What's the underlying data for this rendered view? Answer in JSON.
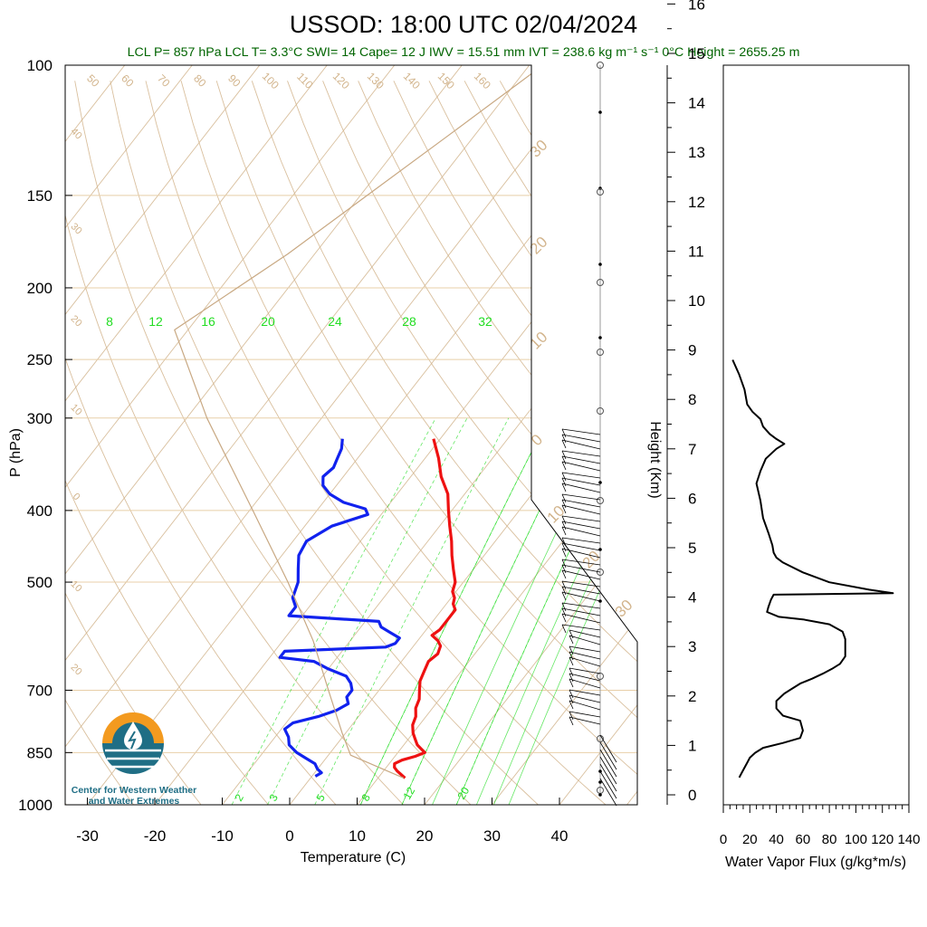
{
  "title": "USSOD: 18:00 UTC 02/04/2024",
  "stats_line": "LCL P= 857 hPa  LCL T= 3.3°C  SWI= 14  Cape= 12 J  IWV = 15.51 mm  IVT = 238.6 kg m⁻¹ s⁻¹  0°C Height = 2655.25 m",
  "logo": {
    "line1": "Center for Western Weather",
    "line2": "and Water Extremes"
  },
  "colors": {
    "temperature": "#ee1111",
    "dewpoint": "#1122ee",
    "mixing_ratio": "#22dd22",
    "adiabat": "#d2b48c",
    "isobar_grid": "#e8cfa8",
    "stats": "#006400",
    "logo_orange": "#f39a1f",
    "logo_teal": "#1f6e85"
  },
  "chart_data": [
    {
      "type": "line",
      "subtype": "skew-T log-P diagram",
      "xlabel": "Temperature (C)",
      "ylabel": "P (hPa)",
      "y_scale": "log",
      "y_reversed": true,
      "xlim": [
        -34,
        50
      ],
      "ylim": [
        1000,
        100
      ],
      "x_ticks": [
        "-30",
        "-20",
        "-10",
        "0",
        "10",
        "20",
        "30",
        "40"
      ],
      "y_ticks": [
        "100",
        "150",
        "200",
        "250",
        "300",
        "400",
        "500",
        "700",
        "850",
        "1000"
      ],
      "series": [
        {
          "role": "temperature",
          "color": "#ee1111",
          "points": [
            [
              920,
              14.0
            ],
            [
              910,
              13.0
            ],
            [
              900,
              12.0
            ],
            [
              890,
              11.2
            ],
            [
              880,
              10.8
            ],
            [
              870,
              11.5
            ],
            [
              860,
              13.0
            ],
            [
              850,
              14.0
            ],
            [
              840,
              13.0
            ],
            [
              830,
              12.0
            ],
            [
              815,
              11.0
            ],
            [
              800,
              10.0
            ],
            [
              780,
              9.0
            ],
            [
              760,
              8.5
            ],
            [
              740,
              7.5
            ],
            [
              720,
              7.0
            ],
            [
              700,
              6.0
            ],
            [
              680,
              5.0
            ],
            [
              660,
              4.5
            ],
            [
              640,
              4.0
            ],
            [
              625,
              4.5
            ],
            [
              610,
              4.0
            ],
            [
              600,
              3.0
            ],
            [
              590,
              1.5
            ],
            [
              580,
              2.0
            ],
            [
              560,
              2.0
            ],
            [
              545,
              2.0
            ],
            [
              535,
              1.0
            ],
            [
              525,
              0.5
            ],
            [
              515,
              -0.5
            ],
            [
              500,
              -1.2
            ],
            [
              480,
              -3.0
            ],
            [
              460,
              -4.8
            ],
            [
              440,
              -6.5
            ],
            [
              420,
              -8.5
            ],
            [
              400,
              -10.5
            ],
            [
              380,
              -12.5
            ],
            [
              360,
              -15.5
            ],
            [
              340,
              -18.0
            ],
            [
              320,
              -21.0
            ]
          ]
        },
        {
          "role": "dewpoint",
          "color": "#1122ee",
          "points": [
            [
              915,
              0.5
            ],
            [
              905,
              1.0
            ],
            [
              895,
              0.0
            ],
            [
              880,
              -1.0
            ],
            [
              865,
              -3.0
            ],
            [
              850,
              -5.0
            ],
            [
              830,
              -7.0
            ],
            [
              810,
              -8.0
            ],
            [
              790,
              -9.5
            ],
            [
              775,
              -9.0
            ],
            [
              760,
              -6.0
            ],
            [
              745,
              -4.0
            ],
            [
              730,
              -3.0
            ],
            [
              715,
              -4.0
            ],
            [
              700,
              -4.0
            ],
            [
              685,
              -5.0
            ],
            [
              670,
              -6.5
            ],
            [
              655,
              -10.0
            ],
            [
              640,
              -13.0
            ],
            [
              632,
              -18.5
            ],
            [
              620,
              -18.5
            ],
            [
              612,
              -4.0
            ],
            [
              605,
              -3.0
            ],
            [
              595,
              -3.0
            ],
            [
              585,
              -5.0
            ],
            [
              575,
              -7.0
            ],
            [
              565,
              -8.0
            ],
            [
              555,
              -22.0
            ],
            [
              540,
              -22.0
            ],
            [
              525,
              -23.5
            ],
            [
              500,
              -24.5
            ],
            [
              480,
              -26.0
            ],
            [
              460,
              -27.5
            ],
            [
              440,
              -28.0
            ],
            [
              420,
              -26.0
            ],
            [
              405,
              -22.0
            ],
            [
              398,
              -23.0
            ],
            [
              390,
              -27.0
            ],
            [
              380,
              -30.0
            ],
            [
              370,
              -32.0
            ],
            [
              365,
              -32.5
            ],
            [
              360,
              -33.0
            ],
            [
              350,
              -32.5
            ],
            [
              340,
              -33.0
            ],
            [
              330,
              -33.5
            ],
            [
              320,
              -34.5
            ]
          ]
        },
        {
          "role": "parcel",
          "color": "#c8a882",
          "points": [
            [
              920,
              13.8
            ],
            [
              857,
              3.3
            ],
            [
              800,
              -0.5
            ],
            [
              700,
              -7.5
            ],
            [
              600,
              -15.5
            ],
            [
              500,
              -26.0
            ],
            [
              400,
              -39.5
            ],
            [
              300,
              -57.0
            ],
            [
              228,
              -72.0
            ],
            [
              180,
              -64.0
            ],
            [
              150,
              -59.0
            ],
            [
              125,
              -54.0
            ],
            [
              100,
              -48.0
            ]
          ]
        }
      ],
      "mixing_ratio_labels_top": [
        "8",
        "12",
        "16",
        "20",
        "24",
        "28",
        "32"
      ],
      "mixing_ratio_labels_bottom": [
        "2",
        "3",
        "5",
        "8",
        "12",
        "20"
      ],
      "dry_adiabat_labels": [
        "50",
        "60",
        "70",
        "80",
        "90",
        "100",
        "110",
        "120",
        "130",
        "140",
        "150",
        "160"
      ],
      "adiabat_labels_left": [
        "40",
        "30",
        "20",
        "10",
        "0",
        "10",
        "20"
      ],
      "temperature_labels_right": [
        "30",
        "20",
        "10",
        "0",
        "10",
        "20",
        "30"
      ]
    },
    {
      "type": "line",
      "subtype": "wind barbs vs height",
      "ylabel": "Height (Km)",
      "ylim": [
        0,
        16.3
      ],
      "y_ticks": [
        "0",
        "1",
        "2",
        "3",
        "4",
        "5",
        "6",
        "7",
        "8",
        "9",
        "10",
        "11",
        "12",
        "13",
        "14",
        "15",
        "16"
      ]
    },
    {
      "type": "line",
      "xlabel": "Water Vapor Flux (g/kg*m/s)",
      "xlim": [
        0,
        140
      ],
      "x_ticks": [
        "0",
        "20",
        "40",
        "60",
        "80",
        "100",
        "120",
        "140"
      ],
      "series": [
        {
          "role": "water-vapor-flux",
          "color": "#000000",
          "points": [
            [
              0.35,
              12
            ],
            [
              0.45,
              14
            ],
            [
              0.55,
              16
            ],
            [
              0.65,
              18
            ],
            [
              0.75,
              20
            ],
            [
              0.85,
              24
            ],
            [
              0.95,
              30
            ],
            [
              1.05,
              45
            ],
            [
              1.15,
              58
            ],
            [
              1.3,
              60
            ],
            [
              1.5,
              58
            ],
            [
              1.6,
              45
            ],
            [
              1.75,
              40
            ],
            [
              1.9,
              40
            ],
            [
              2.05,
              46
            ],
            [
              2.15,
              52
            ],
            [
              2.25,
              58
            ],
            [
              2.35,
              67
            ],
            [
              2.45,
              75
            ],
            [
              2.55,
              82
            ],
            [
              2.65,
              88
            ],
            [
              2.8,
              92
            ],
            [
              3.0,
              92
            ],
            [
              3.15,
              92
            ],
            [
              3.3,
              90
            ],
            [
              3.45,
              80
            ],
            [
              3.55,
              60
            ],
            [
              3.6,
              42
            ],
            [
              3.7,
              33
            ],
            [
              3.8,
              34
            ],
            [
              3.95,
              36
            ],
            [
              4.05,
              38
            ],
            [
              4.08,
              128
            ],
            [
              4.15,
              110
            ],
            [
              4.3,
              80
            ],
            [
              4.5,
              60
            ],
            [
              4.7,
              45
            ],
            [
              4.8,
              40
            ],
            [
              4.9,
              38
            ],
            [
              5.05,
              37
            ],
            [
              5.3,
              34
            ],
            [
              5.6,
              30
            ],
            [
              5.95,
              28
            ],
            [
              6.3,
              25
            ],
            [
              6.55,
              28
            ],
            [
              6.8,
              32
            ],
            [
              7.0,
              40
            ],
            [
              7.1,
              46
            ],
            [
              7.2,
              40
            ],
            [
              7.3,
              35
            ],
            [
              7.45,
              30
            ],
            [
              7.6,
              28
            ],
            [
              7.75,
              22
            ],
            [
              7.9,
              18
            ],
            [
              8.2,
              16
            ],
            [
              8.5,
              12
            ],
            [
              8.8,
              7
            ]
          ]
        }
      ]
    }
  ]
}
